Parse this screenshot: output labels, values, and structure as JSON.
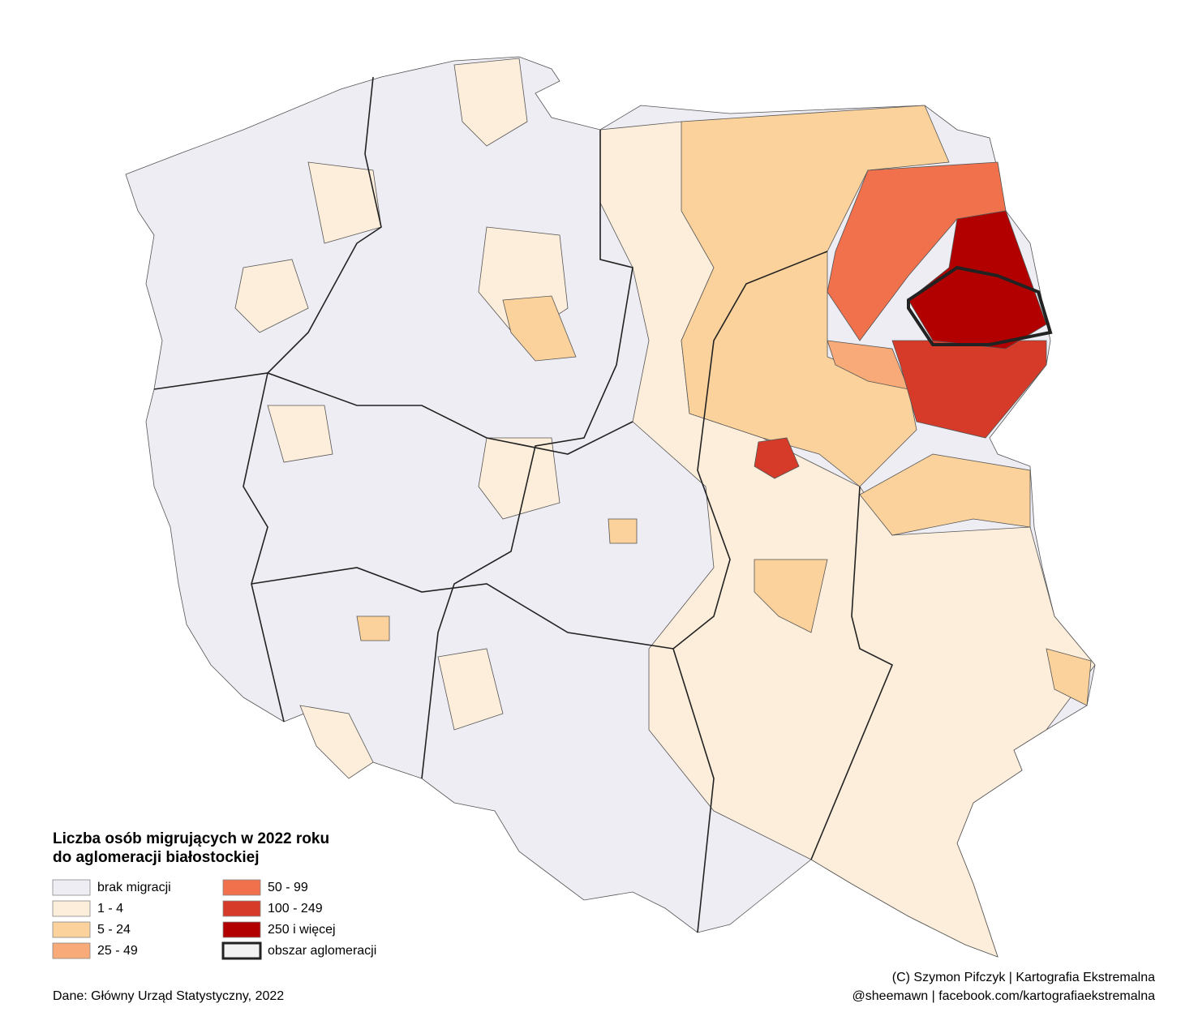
{
  "title": [
    "Liczba osób migrujących w 2022 roku",
    "do aglomeracji białostockiej"
  ],
  "legend": [
    {
      "label": "brak migracji",
      "color": "#eeedf4"
    },
    {
      "label": "1 - 4",
      "color": "#fdeedb"
    },
    {
      "label": "5 - 24",
      "color": "#fbd29b"
    },
    {
      "label": "25 - 49",
      "color": "#f8aa78"
    },
    {
      "label": "50 - 99",
      "color": "#f0714c"
    },
    {
      "label": "100 - 249",
      "color": "#d63b2a"
    },
    {
      "label": "250 i więcej",
      "color": "#b20000"
    },
    {
      "label": "obszar aglomeracji",
      "color": "#f2f2f2",
      "border": "#222222"
    }
  ],
  "source": "Dane: Główny Urząd Statystyczny, 2022",
  "credits": [
    "(C) Szymon Pifczyk | Kartografia Ekstremalna",
    "@sheemawn | facebook.com/kartografiaekstremalna"
  ]
}
